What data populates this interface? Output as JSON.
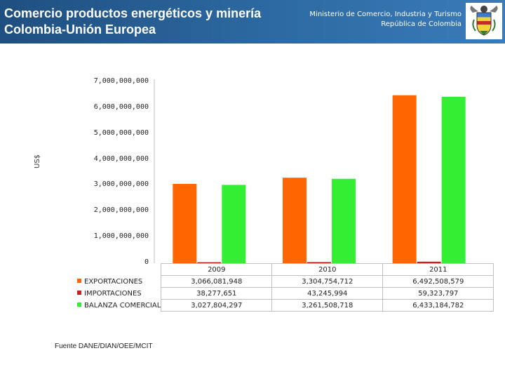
{
  "header": {
    "title_line1": "Comercio productos energéticos y minería",
    "title_line2": "Colombia-Unión Europea",
    "ministry_line1": "Ministerio de Comercio, Industria y Turismo",
    "ministry_line2": "República de Colombia",
    "seal_icon": "colombia-coat-of-arms-icon"
  },
  "footer": {
    "source": "Fuente DANE/DIAN/OEE/MCIT"
  },
  "chart_data": {
    "type": "bar",
    "title": "",
    "xlabel": "",
    "ylabel": "US$",
    "ylim": [
      0,
      7000000000
    ],
    "y_ticks": [
      "0",
      "1,000,000,000",
      "2,000,000,000",
      "3,000,000,000",
      "4,000,000,000",
      "5,000,000,000",
      "6,000,000,000",
      "7,000,000,000"
    ],
    "grid": false,
    "legend": "table-left",
    "categories": [
      "2009",
      "2010",
      "2011"
    ],
    "series": [
      {
        "name": "EXPORTACIONES",
        "color": "#ff6600",
        "values": [
          3066081948,
          3304754712,
          6492508579
        ],
        "labels": [
          "3,066,081,948",
          "3,304,754,712",
          "6,492,508,579"
        ]
      },
      {
        "name": "IMPORTACIONES",
        "color": "#cc1f1f",
        "values": [
          38277651,
          43245994,
          59323797
        ],
        "labels": [
          "38,277,651",
          "43,245,994",
          "59,323,797"
        ]
      },
      {
        "name": "BALANZA COMERCIAL",
        "color": "#33ee33",
        "values": [
          3027804297,
          3261508718,
          6433184782
        ],
        "labels": [
          "3,027,804,297",
          "3,261,508,718",
          "6,433,184,782"
        ]
      }
    ]
  }
}
